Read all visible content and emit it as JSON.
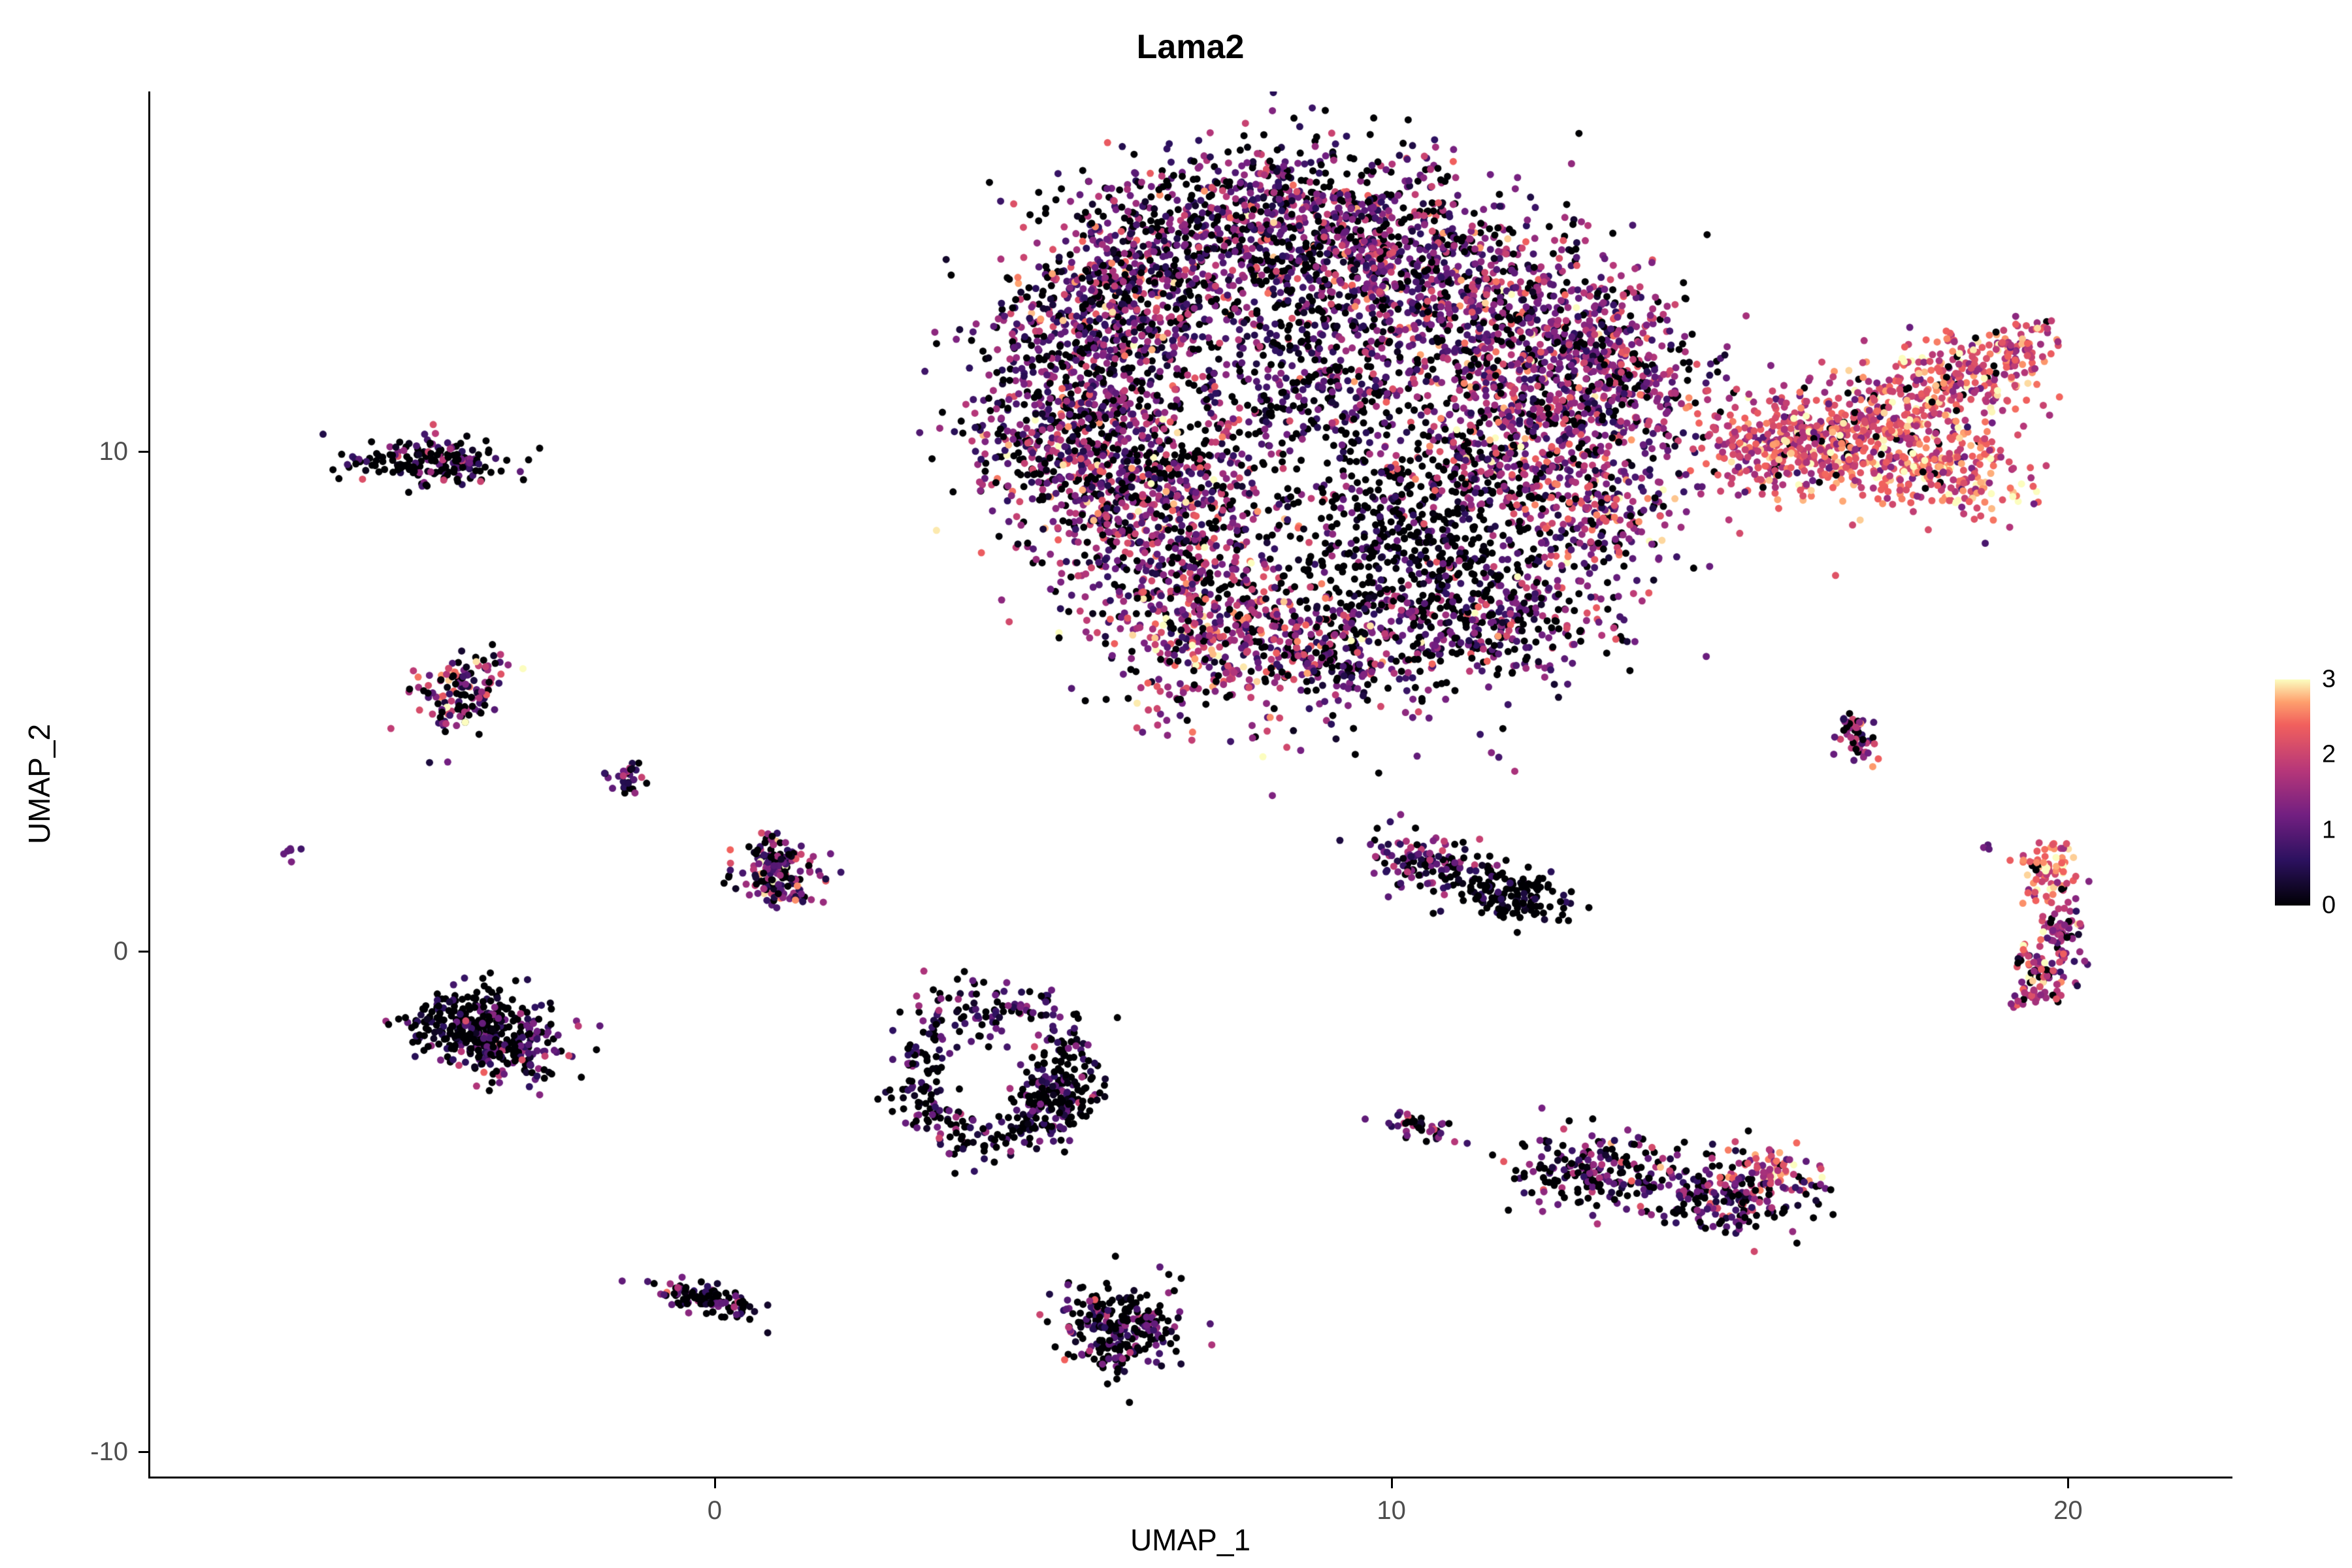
{
  "title": "Lama2",
  "axes": {
    "x_label": "UMAP_1",
    "y_label": "UMAP_2",
    "x_ticks": [
      0,
      10,
      20
    ],
    "y_ticks": [
      10,
      0,
      -10
    ]
  },
  "colorbar": {
    "ticks": [
      3,
      2,
      1,
      0
    ],
    "min": 0,
    "max": 3
  },
  "chart_data": {
    "type": "scatter",
    "title": "Lama2",
    "xlabel": "UMAP_1",
    "ylabel": "UMAP_2",
    "xlim": [
      -8.34,
      22.4
    ],
    "ylim": [
      -10.5,
      17.2
    ],
    "grid": false,
    "legend_position": "right",
    "color_legend_ticks": [
      0,
      1,
      2,
      3
    ],
    "colormap": {
      "name": "magma",
      "domain": [
        0,
        3
      ],
      "stops": [
        [
          0.0,
          "#000004"
        ],
        [
          0.2,
          "#2c115f"
        ],
        [
          0.4,
          "#721f81"
        ],
        [
          0.6,
          "#b73779"
        ],
        [
          0.8,
          "#f1605d"
        ],
        [
          0.9,
          "#fe9f6d"
        ],
        [
          1.0,
          "#fcfdbf"
        ]
      ]
    },
    "point_radius_px": 5.5,
    "seed": 42,
    "representation": "gaussian_mixture_clusters",
    "clusters": [
      {
        "name": "main-upper-left-arm",
        "x": 6.3,
        "y": 13.2,
        "sdx": 0.9,
        "sdy": 1.1,
        "n": 700,
        "e": 1.2,
        "esd": 0.7,
        "zf": 0.25
      },
      {
        "name": "main-top-center",
        "x": 8.3,
        "y": 14.6,
        "sdx": 1.0,
        "sdy": 0.8,
        "n": 650,
        "e": 1.1,
        "esd": 0.7,
        "zf": 0.3
      },
      {
        "name": "main-top-right-center",
        "x": 10.3,
        "y": 13.8,
        "sdx": 1.0,
        "sdy": 0.9,
        "n": 600,
        "e": 1.2,
        "esd": 0.7,
        "zf": 0.25
      },
      {
        "name": "main-upper-right-lobe",
        "x": 12.2,
        "y": 12.6,
        "sdx": 0.9,
        "sdy": 0.8,
        "n": 500,
        "e": 1.3,
        "esd": 0.7,
        "zf": 0.2
      },
      {
        "name": "main-left-column",
        "x": 5.3,
        "y": 10.8,
        "sdx": 0.8,
        "sdy": 1.3,
        "n": 750,
        "e": 1.2,
        "esd": 0.7,
        "zf": 0.3
      },
      {
        "name": "main-center-left",
        "x": 6.6,
        "y": 9.0,
        "sdx": 0.9,
        "sdy": 1.0,
        "n": 650,
        "e": 1.3,
        "esd": 0.7,
        "zf": 0.25
      },
      {
        "name": "main-lower-protrusion",
        "x": 7.4,
        "y": 6.5,
        "sdx": 0.8,
        "sdy": 0.9,
        "n": 500,
        "e": 1.5,
        "esd": 0.8,
        "zf": 0.2
      },
      {
        "name": "main-center-sparse",
        "x": 9.0,
        "y": 11.5,
        "sdx": 1.0,
        "sdy": 1.0,
        "n": 450,
        "e": 1.0,
        "esd": 0.7,
        "zf": 0.35
      },
      {
        "name": "main-dark-patch",
        "x": 10.2,
        "y": 8.3,
        "sdx": 0.9,
        "sdy": 1.0,
        "n": 500,
        "e": 0.5,
        "esd": 0.6,
        "zf": 0.55
      },
      {
        "name": "main-right-pink",
        "x": 11.8,
        "y": 10.3,
        "sdx": 0.9,
        "sdy": 0.9,
        "n": 500,
        "e": 1.4,
        "esd": 0.7,
        "zf": 0.2
      },
      {
        "name": "main-toward-tail",
        "x": 13.3,
        "y": 11.3,
        "sdx": 0.7,
        "sdy": 0.8,
        "n": 350,
        "e": 1.3,
        "esd": 0.7,
        "zf": 0.2
      },
      {
        "name": "main-lower-right-arm",
        "x": 11.4,
        "y": 6.7,
        "sdx": 1.0,
        "sdy": 0.7,
        "n": 400,
        "e": 1.2,
        "esd": 0.7,
        "zf": 0.3
      },
      {
        "name": "main-arm-bridge",
        "x": 13.0,
        "y": 8.6,
        "sdx": 0.7,
        "sdy": 0.7,
        "n": 250,
        "e": 1.5,
        "esd": 0.7,
        "zf": 0.15
      },
      {
        "name": "main-bottom-bridge",
        "x": 9.0,
        "y": 5.9,
        "sdx": 0.7,
        "sdy": 0.5,
        "n": 200,
        "e": 1.3,
        "esd": 0.7,
        "zf": 0.3
      },
      {
        "name": "stray-below-main",
        "x": 9.5,
        "y": 4.5,
        "sdx": 1.5,
        "sdy": 0.8,
        "n": 40,
        "e": 1.0,
        "esd": 0.7,
        "zf": 0.3
      },
      {
        "name": "tail-neck",
        "x": 15.6,
        "y": 10.1,
        "sdx": 0.5,
        "sdy": 0.45,
        "n": 250,
        "e": 2.0,
        "esd": 0.5,
        "zf": 0.08
      },
      {
        "name": "tail-mid",
        "x": 16.8,
        "y": 10.3,
        "sdx": 0.6,
        "sdy": 0.6,
        "n": 300,
        "e": 2.2,
        "esd": 0.5,
        "zf": 0.06
      },
      {
        "name": "tail-fan-upper",
        "x": 18.3,
        "y": 11.4,
        "sdx": 0.75,
        "sdy": 0.5,
        "n": 260,
        "e": 2.2,
        "esd": 0.5,
        "zf": 0.06,
        "angle": 20
      },
      {
        "name": "tail-fan-lower",
        "x": 18.1,
        "y": 9.7,
        "sdx": 0.7,
        "sdy": 0.5,
        "n": 260,
        "e": 2.3,
        "esd": 0.5,
        "zf": 0.06,
        "angle": -10
      },
      {
        "name": "tail-tip",
        "x": 19.3,
        "y": 12.1,
        "sdx": 0.3,
        "sdy": 0.3,
        "n": 70,
        "e": 2.1,
        "esd": 0.5,
        "zf": 0.05
      },
      {
        "name": "sat-top-left",
        "x": -4.2,
        "y": 9.75,
        "sdx": 0.55,
        "sdy": 0.22,
        "n": 200,
        "e": 0.7,
        "esd": 0.7,
        "zf": 0.45
      },
      {
        "name": "sat-left-orange",
        "x": -3.75,
        "y": 5.15,
        "sdx": 0.28,
        "sdy": 0.42,
        "n": 130,
        "e": 1.5,
        "esd": 0.9,
        "zf": 0.2,
        "angle": -25
      },
      {
        "name": "sat-tiny-left",
        "x": -1.3,
        "y": 3.4,
        "sdx": 0.12,
        "sdy": 0.15,
        "n": 30,
        "e": 1.0,
        "esd": 0.6,
        "zf": 0.25
      },
      {
        "name": "sat-lone-dot",
        "x": -6.25,
        "y": 1.95,
        "sdx": 0.07,
        "sdy": 0.07,
        "n": 6,
        "e": 1.2,
        "esd": 0.4,
        "zf": 0
      },
      {
        "name": "sat-center-left",
        "x": 1.0,
        "y": 1.6,
        "sdx": 0.32,
        "sdy": 0.35,
        "n": 170,
        "e": 1.1,
        "esd": 0.8,
        "zf": 0.3
      },
      {
        "name": "sat-left-dark-blob-a",
        "x": -3.6,
        "y": -1.4,
        "sdx": 0.45,
        "sdy": 0.35,
        "n": 240,
        "e": 0.4,
        "esd": 0.5,
        "zf": 0.6
      },
      {
        "name": "sat-left-dark-blob-b",
        "x": -2.95,
        "y": -1.95,
        "sdx": 0.45,
        "sdy": 0.35,
        "n": 160,
        "e": 0.9,
        "esd": 0.6,
        "zf": 0.3
      },
      {
        "name": "sat-ring",
        "shape": "ring",
        "x": 4.1,
        "y": -2.4,
        "r": 1.05,
        "sdr": 0.22,
        "ax": 1.15,
        "ay": 1.35,
        "n": 380,
        "e": 0.7,
        "esd": 0.6,
        "zf": 0.4
      },
      {
        "name": "sat-ring-dense-edge",
        "x": 5.0,
        "y": -2.9,
        "sdx": 0.3,
        "sdy": 0.4,
        "n": 110,
        "e": 0.6,
        "esd": 0.6,
        "zf": 0.5
      },
      {
        "name": "sat-bottom-left",
        "x": -0.15,
        "y": -6.95,
        "sdx": 0.38,
        "sdy": 0.16,
        "n": 110,
        "e": 0.7,
        "esd": 0.6,
        "zf": 0.45,
        "angle": -20
      },
      {
        "name": "sat-bottom-center",
        "x": 6.0,
        "y": -7.5,
        "sdx": 0.42,
        "sdy": 0.45,
        "n": 260,
        "e": 0.8,
        "esd": 0.7,
        "zf": 0.45
      },
      {
        "name": "sat-mid-right-purple",
        "x": 10.6,
        "y": 1.75,
        "sdx": 0.5,
        "sdy": 0.28,
        "n": 130,
        "e": 1.0,
        "esd": 0.6,
        "zf": 0.3,
        "angle": -15
      },
      {
        "name": "sat-mid-right-dark",
        "x": 11.7,
        "y": 1.15,
        "sdx": 0.45,
        "sdy": 0.25,
        "n": 140,
        "e": 0.3,
        "esd": 0.4,
        "zf": 0.65,
        "angle": -10
      },
      {
        "name": "sat-tiny-mid",
        "x": 10.4,
        "y": -3.5,
        "sdx": 0.28,
        "sdy": 0.12,
        "n": 45,
        "e": 1.0,
        "esd": 0.6,
        "zf": 0.3,
        "angle": -20
      },
      {
        "name": "sat-right-elong-left",
        "x": 13.0,
        "y": -4.35,
        "sdx": 0.55,
        "sdy": 0.35,
        "n": 190,
        "e": 0.9,
        "esd": 0.7,
        "zf": 0.4
      },
      {
        "name": "sat-right-elong-right",
        "x": 15.0,
        "y": -4.85,
        "sdx": 0.65,
        "sdy": 0.4,
        "n": 220,
        "e": 1.1,
        "esd": 0.7,
        "zf": 0.3
      },
      {
        "name": "sat-right-elong-bright",
        "x": 15.6,
        "y": -4.4,
        "sdx": 0.22,
        "sdy": 0.26,
        "n": 55,
        "e": 2.2,
        "esd": 0.5,
        "zf": 0.05
      },
      {
        "name": "sat-diag-right",
        "x": 16.85,
        "y": 4.25,
        "sdx": 0.12,
        "sdy": 0.3,
        "n": 50,
        "e": 1.4,
        "esd": 0.6,
        "zf": 0.25,
        "angle": 20
      },
      {
        "name": "sat-right-vert-top",
        "x": 19.65,
        "y": 1.6,
        "sdx": 0.2,
        "sdy": 0.3,
        "n": 75,
        "e": 2.3,
        "esd": 0.5,
        "zf": 0.08
      },
      {
        "name": "sat-right-vert-mid",
        "x": 19.9,
        "y": 0.3,
        "sdx": 0.16,
        "sdy": 0.42,
        "n": 70,
        "e": 1.6,
        "esd": 0.6,
        "zf": 0.15
      },
      {
        "name": "sat-right-vert-bottom",
        "x": 19.55,
        "y": -0.6,
        "sdx": 0.22,
        "sdy": 0.35,
        "n": 80,
        "e": 1.8,
        "esd": 0.6,
        "zf": 0.15
      },
      {
        "name": "sat-stray-pair",
        "x": 18.85,
        "y": 2.1,
        "sdx": 0.05,
        "sdy": 0.05,
        "n": 3,
        "e": 1.2,
        "esd": 0.3,
        "zf": 0
      }
    ]
  }
}
